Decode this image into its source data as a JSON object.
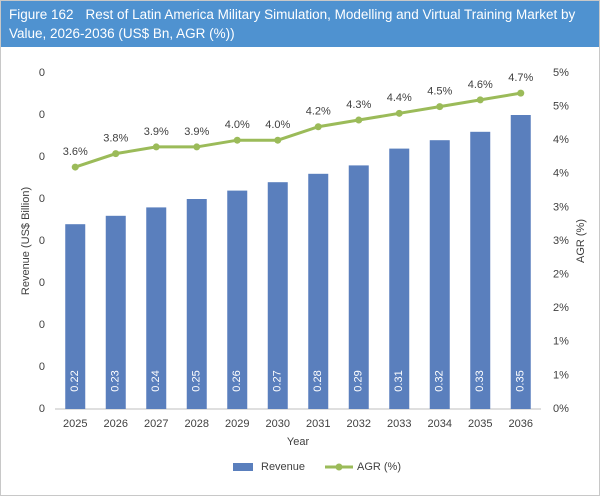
{
  "chart_data": {
    "type": "combo",
    "figure_label": "Figure 162",
    "title": "Rest of Latin America Military Simulation, Modelling and Virtual Training Market by Value, 2026-2036 (US$ Bn, AGR (%))",
    "x_label": "Year",
    "y_label": "Revenue (US$ Billion)",
    "y2_label": "AGR (%)",
    "categories": [
      "2025",
      "2026",
      "2027",
      "2028",
      "2029",
      "2030",
      "2031",
      "2032",
      "2033",
      "2034",
      "2035",
      "2036"
    ],
    "series": [
      {
        "name": "Revenue",
        "type": "bar",
        "color": "#5a7fbd",
        "values": [
          0.22,
          0.23,
          0.24,
          0.25,
          0.26,
          0.27,
          0.28,
          0.29,
          0.31,
          0.32,
          0.33,
          0.35
        ]
      },
      {
        "name": "AGR (%)",
        "type": "line",
        "axis": "y2",
        "color": "#9bbb59",
        "values": [
          3.6,
          3.8,
          3.9,
          3.9,
          4.0,
          4.0,
          4.2,
          4.3,
          4.4,
          4.5,
          4.6,
          4.7
        ],
        "value_labels": [
          "3.6%",
          "3.8%",
          "3.9%",
          "3.9%",
          "4.0%",
          "4.0%",
          "4.2%",
          "4.3%",
          "4.4%",
          "4.5%",
          "4.6%",
          "4.7%"
        ]
      }
    ],
    "ylim": [
      0,
      0.4
    ],
    "yticks": [
      0,
      {
        "value": 0.05,
        "label": "0"
      },
      {
        "value": 0.1,
        "label": "0"
      },
      {
        "value": 0.15,
        "label": "0"
      },
      {
        "value": 0.2,
        "label": "0"
      },
      {
        "value": 0.25,
        "label": "0"
      },
      {
        "value": 0.3,
        "label": "0"
      },
      {
        "value": 0.35,
        "label": "0"
      },
      {
        "value": 0.4,
        "label": "0"
      }
    ],
    "y2lim": [
      0,
      5
    ],
    "y2ticks": [
      {
        "value": 0,
        "label": "0%"
      },
      {
        "value": 0.5,
        "label": "1%"
      },
      {
        "value": 1,
        "label": "1%"
      },
      {
        "value": 1.5,
        "label": "2%"
      },
      {
        "value": 2,
        "label": "2%"
      },
      {
        "value": 2.5,
        "label": "3%"
      },
      {
        "value": 3,
        "label": "3%"
      },
      {
        "value": 3.5,
        "label": "4%"
      },
      {
        "value": 4,
        "label": "4%"
      },
      {
        "value": 4.5,
        "label": "5%"
      },
      {
        "value": 5,
        "label": "5%"
      }
    ],
    "grid": false
  }
}
